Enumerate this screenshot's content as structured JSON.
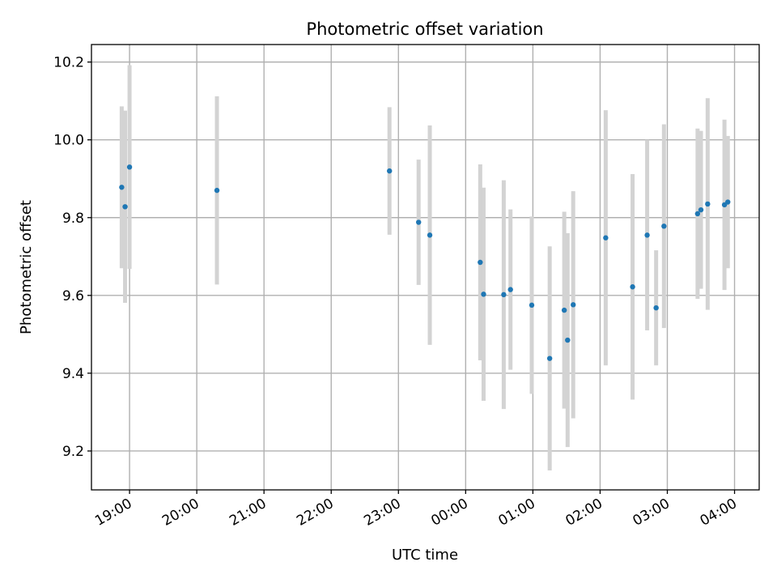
{
  "chart_data": {
    "type": "scatter",
    "title": "Photometric offset variation",
    "xlabel": "UTC time",
    "ylabel": "Photometric offset",
    "grid": true,
    "x_axis_type": "time",
    "xlim": [
      "18:26",
      "04:22"
    ],
    "ylim": [
      9.1,
      10.245
    ],
    "x_ticks": [
      "19:00",
      "20:00",
      "21:00",
      "22:00",
      "23:00",
      "00:00",
      "01:00",
      "02:00",
      "03:00",
      "04:00"
    ],
    "y_ticks": [
      "9.2",
      "9.4",
      "9.6",
      "9.8",
      "10.0",
      "10.2"
    ],
    "colors": {
      "points": "#1f77b4",
      "error_bars": "#d3d3d3",
      "grid": "#b0b0b0"
    },
    "points": [
      {
        "x": "18:53",
        "y": 9.878,
        "err": 0.208
      },
      {
        "x": "18:56",
        "y": 9.828,
        "err": 0.247
      },
      {
        "x": "19:00",
        "y": 9.93,
        "err": 0.262
      },
      {
        "x": "20:18",
        "y": 9.87,
        "err": 0.242
      },
      {
        "x": "22:52",
        "y": 9.92,
        "err": 0.164
      },
      {
        "x": "23:18",
        "y": 9.788,
        "err": 0.161
      },
      {
        "x": "23:28",
        "y": 9.755,
        "err": 0.282
      },
      {
        "x": "00:13",
        "y": 9.685,
        "err": 0.252
      },
      {
        "x": "00:16",
        "y": 9.603,
        "err": 0.274
      },
      {
        "x": "00:34",
        "y": 9.602,
        "err": 0.294
      },
      {
        "x": "00:40",
        "y": 9.615,
        "err": 0.206
      },
      {
        "x": "00:59",
        "y": 9.575,
        "err": 0.228
      },
      {
        "x": "01:15",
        "y": 9.438,
        "err": 0.288
      },
      {
        "x": "01:28",
        "y": 9.562,
        "err": 0.253
      },
      {
        "x": "01:31",
        "y": 9.485,
        "err": 0.275
      },
      {
        "x": "01:36",
        "y": 9.576,
        "err": 0.292
      },
      {
        "x": "02:05",
        "y": 9.748,
        "err": 0.328
      },
      {
        "x": "02:29",
        "y": 9.622,
        "err": 0.29
      },
      {
        "x": "02:42",
        "y": 9.755,
        "err": 0.245
      },
      {
        "x": "02:50",
        "y": 9.568,
        "err": 0.148
      },
      {
        "x": "02:57",
        "y": 9.778,
        "err": 0.262
      },
      {
        "x": "03:27",
        "y": 9.81,
        "err": 0.219
      },
      {
        "x": "03:30",
        "y": 9.82,
        "err": 0.203
      },
      {
        "x": "03:36",
        "y": 9.835,
        "err": 0.272
      },
      {
        "x": "03:51",
        "y": 9.833,
        "err": 0.219
      },
      {
        "x": "03:54",
        "y": 9.84,
        "err": 0.17
      }
    ]
  }
}
